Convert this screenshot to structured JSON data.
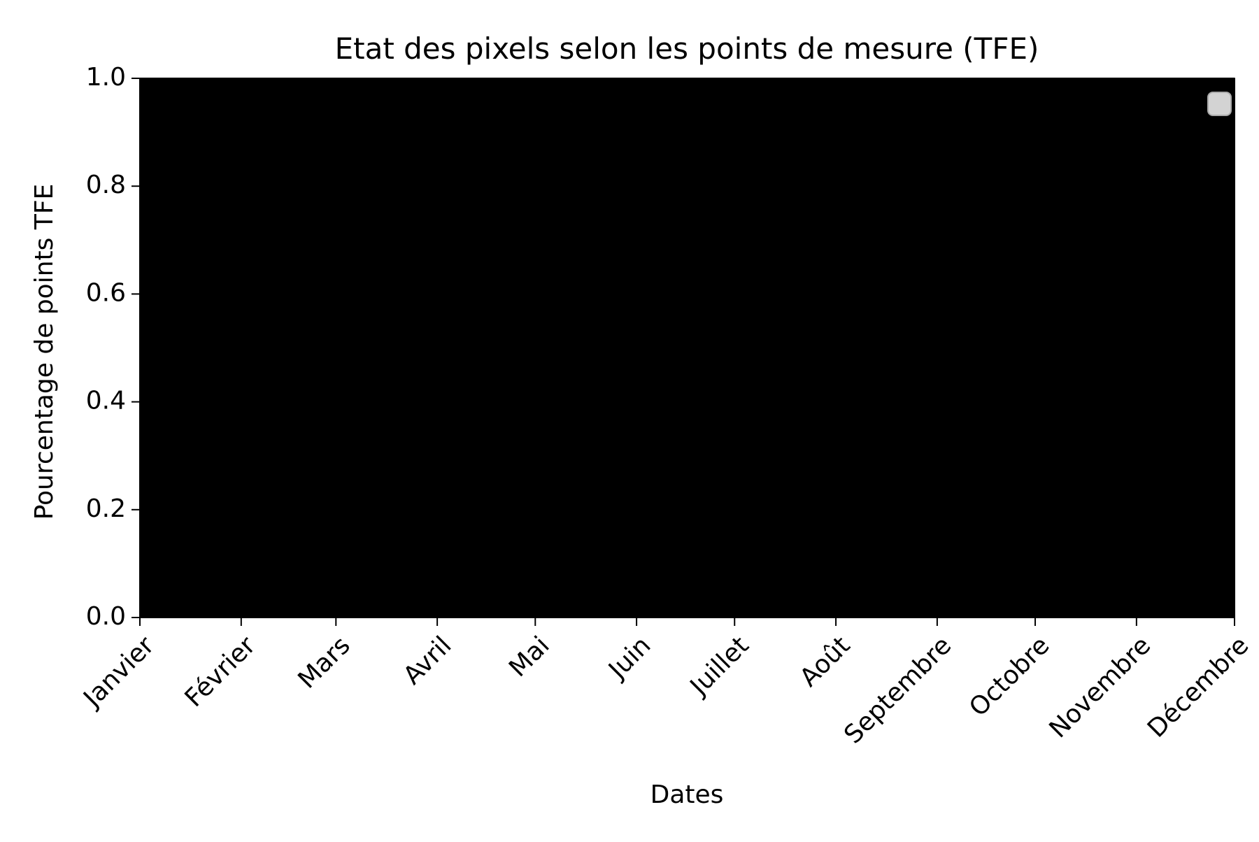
{
  "chart_data": {
    "type": "area",
    "title": "Etat des pixels selon les points de mesure (TFE)",
    "xlabel": "Dates",
    "ylabel": "Pourcentage de points TFE",
    "categories": [
      "Janvier",
      "Février",
      "Mars",
      "Avril",
      "Mai",
      "Juin",
      "Juillet",
      "Août",
      "Septembre",
      "Octobre",
      "Novembre",
      "Décembre"
    ],
    "x": [
      "2020-01-01",
      "2020-02-01",
      "2020-03-01",
      "2020-04-01",
      "2020-05-01",
      "2020-06-01",
      "2020-07-01",
      "2020-08-01",
      "2020-09-01",
      "2020-10-01",
      "2020-11-01",
      "2020-12-01"
    ],
    "xlim": [
      "2020-01-01",
      "2020-12-01"
    ],
    "series": [
      {
        "values": [
          1,
          1,
          1,
          1,
          1,
          1,
          1,
          1,
          1,
          1,
          1,
          1
        ],
        "color": "#000000"
      }
    ],
    "ylim": [
      0,
      1
    ],
    "yticks": [
      0.0,
      0.2,
      0.4,
      0.6,
      0.8,
      1.0
    ],
    "ytick_labels": [
      "0.0",
      "0.2",
      "0.4",
      "0.6",
      "0.8",
      "1.0"
    ],
    "grid": false,
    "legend": {
      "placement": "top-right",
      "entries": []
    },
    "colors": {
      "background": "#ffffff",
      "axes_fill": "#000000",
      "text": "#000000",
      "legend_box": "#d3d3d3",
      "legend_border": "#aaaaaa"
    }
  }
}
